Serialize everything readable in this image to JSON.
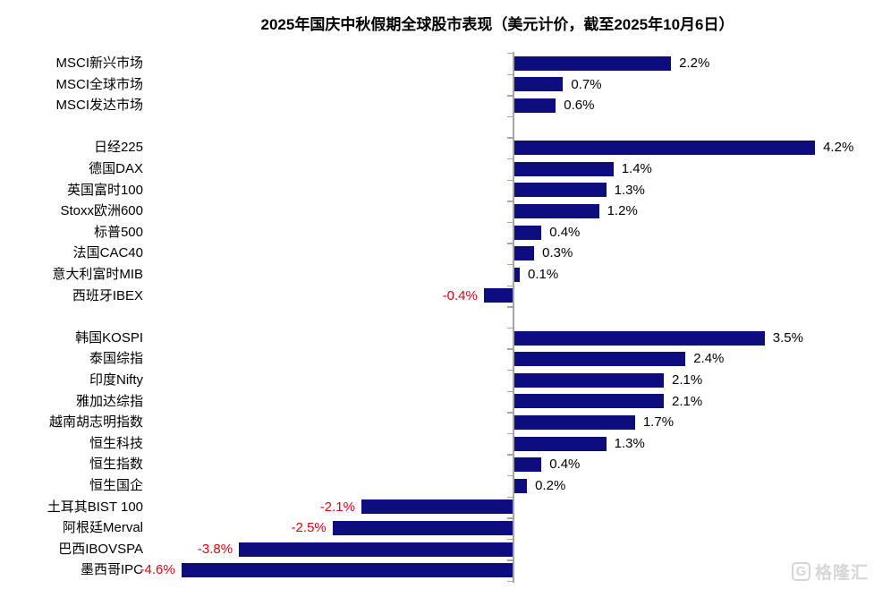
{
  "title": "2025年国庆中秋假期全球股市表现（美元计价，截至2025年10月6日）",
  "watermark": {
    "logo_letter": "G",
    "text": "格隆汇"
  },
  "colors": {
    "bar": "#0d0d80",
    "positive_label": "#000000",
    "negative_label": "#e60012",
    "axis": "#a6a6a6",
    "watermark": "#d6d6d6"
  },
  "chart_data": {
    "type": "bar",
    "orientation": "horizontal",
    "title": "2025年国庆中秋假期全球股市表现（美元计价，截至2025年10月6日）",
    "value_unit": "%",
    "xlim": [
      -5,
      5
    ],
    "grid": false,
    "legend": false,
    "groups": [
      [
        {
          "label": "MSCI新兴市场",
          "value": 2.2,
          "display": "2.2%"
        },
        {
          "label": "MSCI全球市场",
          "value": 0.7,
          "display": "0.7%"
        },
        {
          "label": "MSCI发达市场",
          "value": 0.6,
          "display": "0.6%"
        }
      ],
      [
        {
          "label": "日经225",
          "value": 4.2,
          "display": "4.2%"
        },
        {
          "label": "德国DAX",
          "value": 1.4,
          "display": "1.4%"
        },
        {
          "label": "英国富时100",
          "value": 1.3,
          "display": "1.3%"
        },
        {
          "label": "Stoxx欧洲600",
          "value": 1.2,
          "display": "1.2%"
        },
        {
          "label": "标普500",
          "value": 0.4,
          "display": "0.4%"
        },
        {
          "label": "法国CAC40",
          "value": 0.3,
          "display": "0.3%"
        },
        {
          "label": "意大利富时MIB",
          "value": 0.1,
          "display": "0.1%"
        },
        {
          "label": "西班牙IBEX",
          "value": -0.4,
          "display": "-0.4%"
        }
      ],
      [
        {
          "label": "韩国KOSPI",
          "value": 3.5,
          "display": "3.5%"
        },
        {
          "label": "泰国综指",
          "value": 2.4,
          "display": "2.4%"
        },
        {
          "label": "印度Nifty",
          "value": 2.1,
          "display": "2.1%"
        },
        {
          "label": "雅加达综指",
          "value": 2.1,
          "display": "2.1%"
        },
        {
          "label": "越南胡志明指数",
          "value": 1.7,
          "display": "1.7%"
        },
        {
          "label": "恒生科技",
          "value": 1.3,
          "display": "1.3%"
        },
        {
          "label": "恒生指数",
          "value": 0.4,
          "display": "0.4%"
        },
        {
          "label": "恒生国企",
          "value": 0.2,
          "display": "0.2%"
        },
        {
          "label": "土耳其BIST 100",
          "value": -2.1,
          "display": "-2.1%"
        },
        {
          "label": "阿根廷Merval",
          "value": -2.5,
          "display": "-2.5%"
        },
        {
          "label": "巴西IBOVSPA",
          "value": -3.8,
          "display": "-3.8%"
        },
        {
          "label": "墨西哥IPC",
          "value": -4.6,
          "display": "-4.6%"
        }
      ]
    ]
  }
}
